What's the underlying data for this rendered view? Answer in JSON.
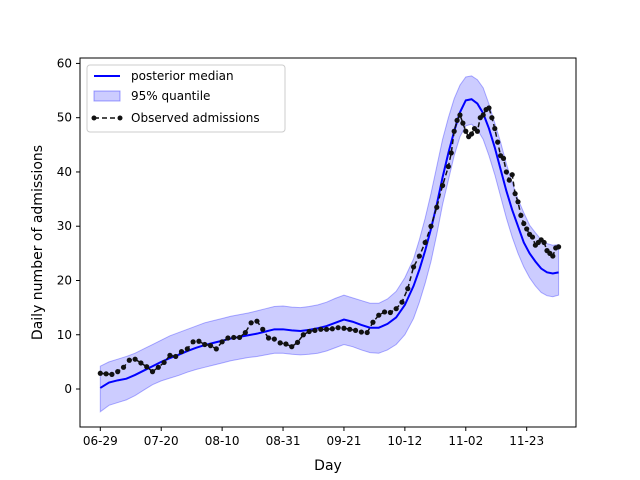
{
  "chart_data": {
    "type": "line",
    "xlabel": "Day",
    "ylabel": "Daily number of admissions",
    "x_ticks": [
      "06-29",
      "07-20",
      "08-10",
      "08-31",
      "09-21",
      "10-12",
      "11-02",
      "11-23"
    ],
    "x_tick_days": [
      0,
      21,
      42,
      63,
      84,
      105,
      126,
      147
    ],
    "xlim": [
      -7,
      164
    ],
    "ylim": [
      -7,
      61
    ],
    "y_ticks": [
      0,
      10,
      20,
      30,
      40,
      50,
      60
    ],
    "legend_position": "top-left",
    "colors": {
      "median": "#0000ff",
      "band": "#0000ff",
      "observed": "#111111"
    },
    "series": [
      {
        "name": "posterior median",
        "kind": "line",
        "x": [
          0,
          3,
          6,
          9,
          12,
          15,
          18,
          21,
          24,
          27,
          30,
          33,
          36,
          39,
          42,
          45,
          48,
          51,
          54,
          57,
          60,
          63,
          66,
          69,
          72,
          75,
          78,
          81,
          84,
          87,
          90,
          93,
          96,
          99,
          102,
          105,
          108,
          110,
          112,
          114,
          116,
          118,
          120,
          122,
          124,
          126,
          128,
          130,
          132,
          134,
          136,
          138,
          140,
          142,
          144,
          146,
          148,
          150,
          152,
          154,
          156,
          158
        ],
        "y": [
          0.2,
          1.2,
          1.6,
          1.9,
          2.6,
          3.4,
          4.2,
          5.0,
          5.7,
          6.3,
          7.0,
          7.6,
          8.1,
          8.5,
          8.9,
          9.3,
          9.6,
          9.9,
          10.2,
          10.6,
          11.0,
          11.0,
          10.8,
          10.7,
          10.9,
          11.2,
          11.6,
          12.2,
          12.8,
          12.4,
          11.8,
          11.3,
          11.3,
          12.0,
          13.2,
          15.5,
          19.0,
          22.0,
          25.5,
          29.5,
          34.0,
          39.0,
          43.5,
          47.5,
          51.0,
          53.2,
          53.4,
          52.6,
          50.8,
          48.0,
          44.5,
          40.5,
          36.5,
          33.0,
          30.0,
          27.0,
          25.0,
          23.5,
          22.2,
          21.5,
          21.3,
          21.5
        ]
      },
      {
        "name": "95% quantile",
        "kind": "band",
        "x": [
          0,
          3,
          6,
          9,
          12,
          15,
          18,
          21,
          24,
          27,
          30,
          33,
          36,
          39,
          42,
          45,
          48,
          51,
          54,
          57,
          60,
          63,
          66,
          69,
          72,
          75,
          78,
          81,
          84,
          87,
          90,
          93,
          96,
          99,
          102,
          105,
          108,
          110,
          112,
          114,
          116,
          118,
          120,
          122,
          124,
          126,
          128,
          130,
          132,
          134,
          136,
          138,
          140,
          142,
          144,
          146,
          148,
          150,
          152,
          154,
          156,
          158
        ],
        "lower": [
          -4.2,
          -3.0,
          -2.5,
          -2.0,
          -1.2,
          -0.2,
          0.8,
          1.5,
          2.0,
          2.5,
          3.1,
          3.6,
          4.0,
          4.4,
          4.8,
          5.2,
          5.5,
          5.8,
          6.0,
          6.3,
          6.6,
          6.6,
          6.4,
          6.3,
          6.4,
          6.6,
          7.0,
          7.6,
          8.2,
          7.8,
          7.2,
          6.7,
          6.6,
          7.2,
          8.2,
          10.0,
          13.0,
          16.0,
          19.5,
          23.5,
          28.5,
          34.0,
          38.5,
          43.0,
          46.5,
          48.5,
          48.8,
          47.8,
          46.0,
          43.0,
          39.5,
          35.5,
          31.5,
          28.0,
          25.0,
          22.5,
          20.5,
          19.0,
          17.8,
          17.2,
          17.0,
          17.3
        ],
        "upper": [
          4.2,
          5.0,
          5.5,
          6.0,
          6.6,
          7.4,
          8.2,
          9.0,
          9.8,
          10.4,
          11.0,
          11.6,
          12.2,
          12.6,
          13.0,
          13.4,
          13.7,
          14.0,
          14.4,
          14.8,
          15.2,
          15.3,
          15.1,
          15.0,
          15.2,
          15.5,
          16.0,
          16.7,
          17.3,
          16.8,
          16.3,
          15.8,
          15.8,
          16.6,
          18.0,
          20.5,
          24.0,
          27.5,
          31.5,
          36.0,
          41.0,
          46.0,
          50.0,
          53.5,
          56.0,
          57.5,
          57.7,
          57.0,
          55.5,
          52.5,
          49.0,
          45.5,
          41.5,
          38.0,
          35.0,
          32.5,
          30.2,
          28.8,
          27.5,
          26.8,
          26.5,
          26.6
        ]
      },
      {
        "name": "Observed admissions",
        "kind": "dashed-marker",
        "x": [
          0,
          2,
          4,
          6,
          8,
          10,
          12,
          14,
          16,
          18,
          20,
          22,
          24,
          26,
          28,
          30,
          32,
          34,
          36,
          38,
          40,
          42,
          44,
          46,
          48,
          50,
          52,
          54,
          56,
          58,
          60,
          62,
          64,
          66,
          68,
          70,
          72,
          74,
          76,
          78,
          80,
          82,
          84,
          86,
          88,
          90,
          92,
          94,
          96,
          98,
          100,
          102,
          104,
          106,
          108,
          110,
          112,
          114,
          116,
          118,
          120,
          121,
          122,
          123,
          124,
          125,
          126,
          127,
          128,
          129,
          130,
          131,
          132,
          133,
          134,
          135,
          136,
          137,
          138,
          139,
          140,
          141,
          142,
          143,
          144,
          145,
          146,
          147,
          148,
          149,
          150,
          151,
          152,
          153,
          154,
          155,
          156,
          157,
          158
        ],
        "y": [
          2.9,
          2.8,
          2.7,
          3.2,
          4.0,
          5.3,
          5.5,
          4.8,
          4.1,
          3.2,
          4.0,
          4.9,
          6.2,
          6.0,
          6.9,
          7.4,
          8.7,
          8.8,
          8.2,
          8.0,
          7.4,
          8.7,
          9.4,
          9.5,
          9.5,
          10.4,
          12.2,
          12.5,
          11.0,
          9.4,
          9.2,
          8.5,
          8.3,
          7.8,
          8.6,
          10.0,
          10.6,
          10.8,
          11.0,
          11.0,
          11.1,
          11.3,
          11.2,
          11.0,
          10.8,
          10.5,
          10.4,
          12.3,
          13.6,
          14.2,
          14.1,
          14.8,
          16.0,
          18.5,
          22.5,
          24.5,
          27.0,
          30.0,
          33.5,
          37.5,
          41.0,
          43.5,
          47.5,
          49.5,
          50.5,
          49.0,
          47.5,
          46.5,
          47.0,
          48.0,
          47.5,
          50.0,
          50.5,
          51.5,
          51.8,
          50.0,
          48.0,
          45.5,
          43.0,
          42.5,
          40.0,
          38.5,
          39.5,
          36.0,
          34.5,
          32.0,
          30.5,
          29.5,
          28.5,
          28.0,
          26.5,
          27.0,
          27.5,
          27.0,
          25.5,
          25.0,
          24.5,
          26.0,
          26.2
        ]
      }
    ]
  }
}
